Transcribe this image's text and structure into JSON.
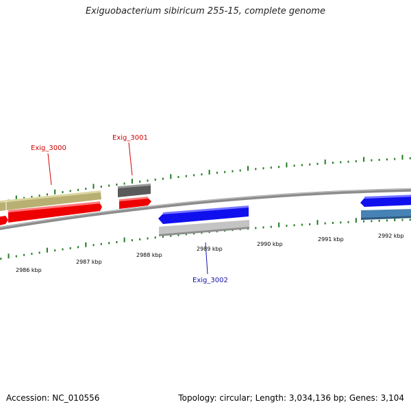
{
  "title": "Exiguobacterium sibiricum 255-15, complete genome",
  "accession_text": "Accession: NC_010556",
  "summary_text": "Topology: circular; Length: 3,034,136 bp; Genes: 3,104",
  "colors": {
    "backbone": "#8c8c8c",
    "tick": "#1f7a1f",
    "label_red": "#cc0000",
    "label_blue": "#1010aa"
  },
  "tick_labels": [
    {
      "name": "tick-2986",
      "text": "2986 kbp"
    },
    {
      "name": "tick-2987",
      "text": "2987 kbp"
    },
    {
      "name": "tick-2988",
      "text": "2988 kbp"
    },
    {
      "name": "tick-2989",
      "text": "2989 kbp"
    },
    {
      "name": "tick-2990",
      "text": "2990 kbp"
    },
    {
      "name": "tick-2991",
      "text": "2991 kbp"
    },
    {
      "name": "tick-2992",
      "text": "2992 kbp"
    }
  ],
  "gene_labels": [
    {
      "name": "label-exig-3000",
      "text": "Exig_3000",
      "color": "#cc0000"
    },
    {
      "name": "label-exig-3001",
      "text": "Exig_3001",
      "color": "#cc0000"
    },
    {
      "name": "label-exig-3002",
      "text": "Exig_3002",
      "color": "#1010aa"
    }
  ]
}
